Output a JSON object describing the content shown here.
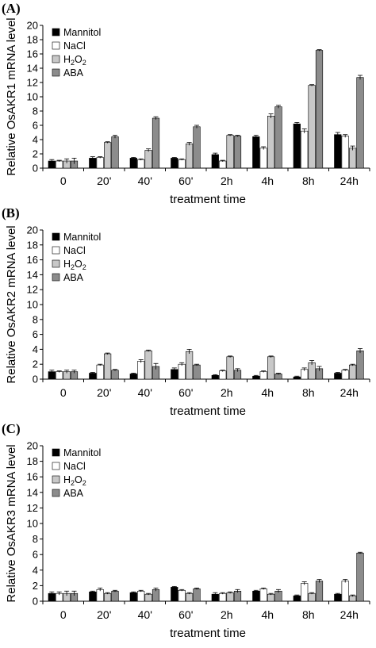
{
  "colors": {
    "mannitol": "#000000",
    "nacl": "#ffffff",
    "h2o2": "#c8c8c8",
    "aba": "#8c8c8c",
    "axis": "#000000"
  },
  "chart_data": [
    {
      "type": "bar",
      "panel": "(A)",
      "ylabel": "Relative OsAKR1 mRNA level",
      "xlabel": "treatment time",
      "ylim": [
        0,
        20
      ],
      "yticks": [
        0,
        2,
        4,
        6,
        8,
        10,
        12,
        14,
        16,
        18,
        20
      ],
      "categories": [
        "0",
        "20'",
        "40'",
        "60'",
        "2h",
        "4h",
        "8h",
        "24h"
      ],
      "legend_position": "top-left",
      "series": [
        {
          "name": "Mannitol",
          "color_key": "mannitol",
          "values": [
            1.0,
            1.4,
            1.4,
            1.4,
            1.9,
            4.4,
            6.2,
            4.7
          ]
        },
        {
          "name": "NaCl",
          "color_key": "nacl",
          "values": [
            1.0,
            1.5,
            1.2,
            1.2,
            1.0,
            2.8,
            5.2,
            4.5
          ]
        },
        {
          "name": "H2O2",
          "color_key": "h2o2",
          "values": [
            1.0,
            3.6,
            2.5,
            3.4,
            4.6,
            7.3,
            11.6,
            2.8
          ]
        },
        {
          "name": "ABA",
          "color_key": "aba",
          "values": [
            1.0,
            4.4,
            7.0,
            5.8,
            4.5,
            8.6,
            16.5,
            12.7
          ]
        }
      ],
      "errors": [
        [
          0.2,
          0.2,
          0.1,
          0.1,
          0.2,
          0.2,
          0.2,
          0.3
        ],
        [
          0.1,
          0.1,
          0.1,
          0.1,
          0.1,
          0.2,
          0.3,
          0.2
        ],
        [
          0.3,
          0.1,
          0.2,
          0.2,
          0.1,
          0.3,
          0.1,
          0.3
        ],
        [
          0.4,
          0.2,
          0.2,
          0.2,
          0.1,
          0.2,
          0.1,
          0.3
        ]
      ]
    },
    {
      "type": "bar",
      "panel": "(B)",
      "ylabel": "Relative OsAKR2 mRNA level",
      "xlabel": "treatment time",
      "ylim": [
        0,
        20
      ],
      "yticks": [
        0,
        2,
        4,
        6,
        8,
        10,
        12,
        14,
        16,
        18,
        20
      ],
      "categories": [
        "0",
        "20'",
        "40'",
        "60'",
        "2h",
        "4h",
        "8h",
        "24h"
      ],
      "legend_position": "top-left",
      "series": [
        {
          "name": "Mannitol",
          "color_key": "mannitol",
          "values": [
            1.0,
            0.8,
            0.7,
            1.3,
            0.5,
            0.4,
            0.3,
            0.8
          ]
        },
        {
          "name": "NaCl",
          "color_key": "nacl",
          "values": [
            1.0,
            1.9,
            2.4,
            2.0,
            1.1,
            1.0,
            1.3,
            1.2
          ]
        },
        {
          "name": "H2O2",
          "color_key": "h2o2",
          "values": [
            1.0,
            3.4,
            3.8,
            3.7,
            3.0,
            3.0,
            2.2,
            1.9
          ]
        },
        {
          "name": "ABA",
          "color_key": "aba",
          "values": [
            1.0,
            1.2,
            1.7,
            1.9,
            1.2,
            0.7,
            1.4,
            3.8
          ]
        }
      ],
      "errors": [
        [
          0.2,
          0.1,
          0.1,
          0.2,
          0.1,
          0.1,
          0.1,
          0.1
        ],
        [
          0.1,
          0.1,
          0.2,
          0.2,
          0.1,
          0.1,
          0.2,
          0.1
        ],
        [
          0.2,
          0.1,
          0.1,
          0.3,
          0.1,
          0.1,
          0.3,
          0.1
        ],
        [
          0.2,
          0.1,
          0.4,
          0.1,
          0.2,
          0.1,
          0.3,
          0.3
        ]
      ]
    },
    {
      "type": "bar",
      "panel": "(C)",
      "ylabel": "Relative OsAKR3 mRNA level",
      "xlabel": "treatment time",
      "ylim": [
        0,
        20
      ],
      "yticks": [
        0,
        2,
        4,
        6,
        8,
        10,
        12,
        14,
        16,
        18,
        20
      ],
      "categories": [
        "0",
        "20'",
        "40'",
        "60'",
        "2h",
        "4h",
        "8h",
        "24h"
      ],
      "legend_position": "top-left",
      "series": [
        {
          "name": "Mannitol",
          "color_key": "mannitol",
          "values": [
            1.0,
            1.2,
            1.1,
            1.8,
            0.9,
            1.3,
            0.7,
            0.9
          ]
        },
        {
          "name": "NaCl",
          "color_key": "nacl",
          "values": [
            1.0,
            1.5,
            1.3,
            1.4,
            1.0,
            1.6,
            2.3,
            2.6
          ]
        },
        {
          "name": "H2O2",
          "color_key": "h2o2",
          "values": [
            1.0,
            1.0,
            0.9,
            1.0,
            1.1,
            0.9,
            1.0,
            0.7
          ]
        },
        {
          "name": "ABA",
          "color_key": "aba",
          "values": [
            1.0,
            1.3,
            1.5,
            1.6,
            1.3,
            1.3,
            2.6,
            6.2
          ]
        }
      ],
      "errors": [
        [
          0.2,
          0.1,
          0.1,
          0.1,
          0.2,
          0.1,
          0.1,
          0.1
        ],
        [
          0.2,
          0.2,
          0.1,
          0.1,
          0.1,
          0.1,
          0.2,
          0.2
        ],
        [
          0.3,
          0.1,
          0.1,
          0.1,
          0.1,
          0.1,
          0.1,
          0.1
        ],
        [
          0.3,
          0.1,
          0.2,
          0.1,
          0.2,
          0.2,
          0.2,
          0.1
        ]
      ]
    }
  ]
}
